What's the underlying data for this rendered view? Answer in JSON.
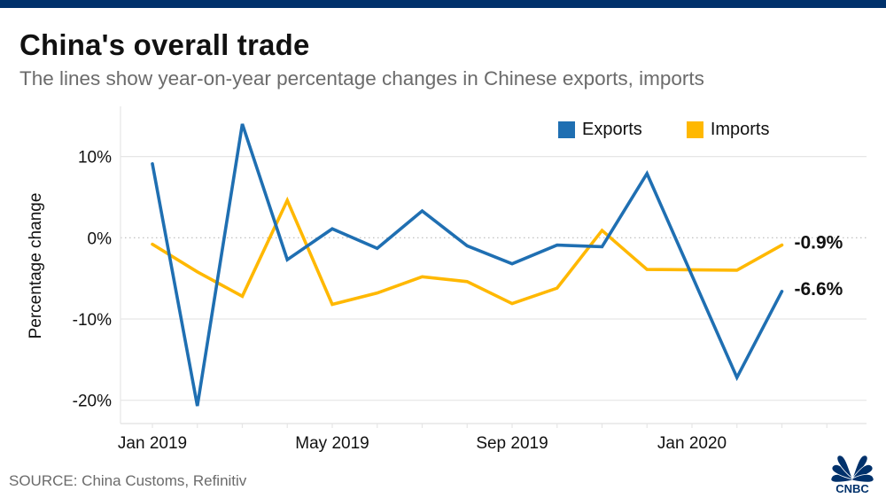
{
  "header": {
    "title": "China's overall trade",
    "subtitle": "The lines show year-on-year percentage changes in Chinese exports, imports"
  },
  "footer": {
    "source": "SOURCE: China Customs, Refinitiv",
    "logo_text": "CNBC",
    "logo_icon": "cnbc-peacock-icon"
  },
  "colors": {
    "top_bar": "#00316b",
    "exports": "#1f6fb2",
    "imports": "#ffb800",
    "grid": "#e6e6e6",
    "zero_line": "#bbbbbb",
    "logo": "#00316b"
  },
  "chart_data": {
    "type": "line",
    "title": "China's overall trade",
    "subtitle": "The lines show year-on-year percentage changes in Chinese exports, imports",
    "xlabel": "",
    "ylabel": "Percentage change",
    "x": [
      "Jan 2019",
      "Feb 2019",
      "Mar 2019",
      "Apr 2019",
      "May 2019",
      "Jun 2019",
      "Jul 2019",
      "Aug 2019",
      "Sep 2019",
      "Oct 2019",
      "Nov 2019",
      "Dec 2019",
      "Jan 2020",
      "Feb 2020",
      "Mar 2020"
    ],
    "x_tick_labels": [
      "Jan 2019",
      "May 2019",
      "Sep 2019",
      "Jan 2020"
    ],
    "y_ticks": [
      10,
      0,
      -10,
      -20
    ],
    "y_tick_labels": [
      "10%",
      "0%",
      "-10%",
      "-20%"
    ],
    "ylim": [
      -23,
      16
    ],
    "grid": true,
    "legend": {
      "position": "top-right",
      "entries": [
        "Exports",
        "Imports"
      ]
    },
    "series": [
      {
        "name": "Exports",
        "values": [
          9.1,
          -20.7,
          14.0,
          -2.7,
          1.1,
          -1.3,
          3.3,
          -1.0,
          -3.2,
          -0.9,
          -1.1,
          7.9,
          null,
          -17.2,
          -6.6
        ],
        "end_label": "-6.6%"
      },
      {
        "name": "Imports",
        "values": [
          -0.8,
          -4.2,
          -7.2,
          4.6,
          -8.2,
          -6.8,
          -4.8,
          -5.4,
          -8.1,
          -6.2,
          0.9,
          -3.9,
          null,
          -4.0,
          -0.9
        ],
        "end_label": "-0.9%"
      }
    ]
  }
}
